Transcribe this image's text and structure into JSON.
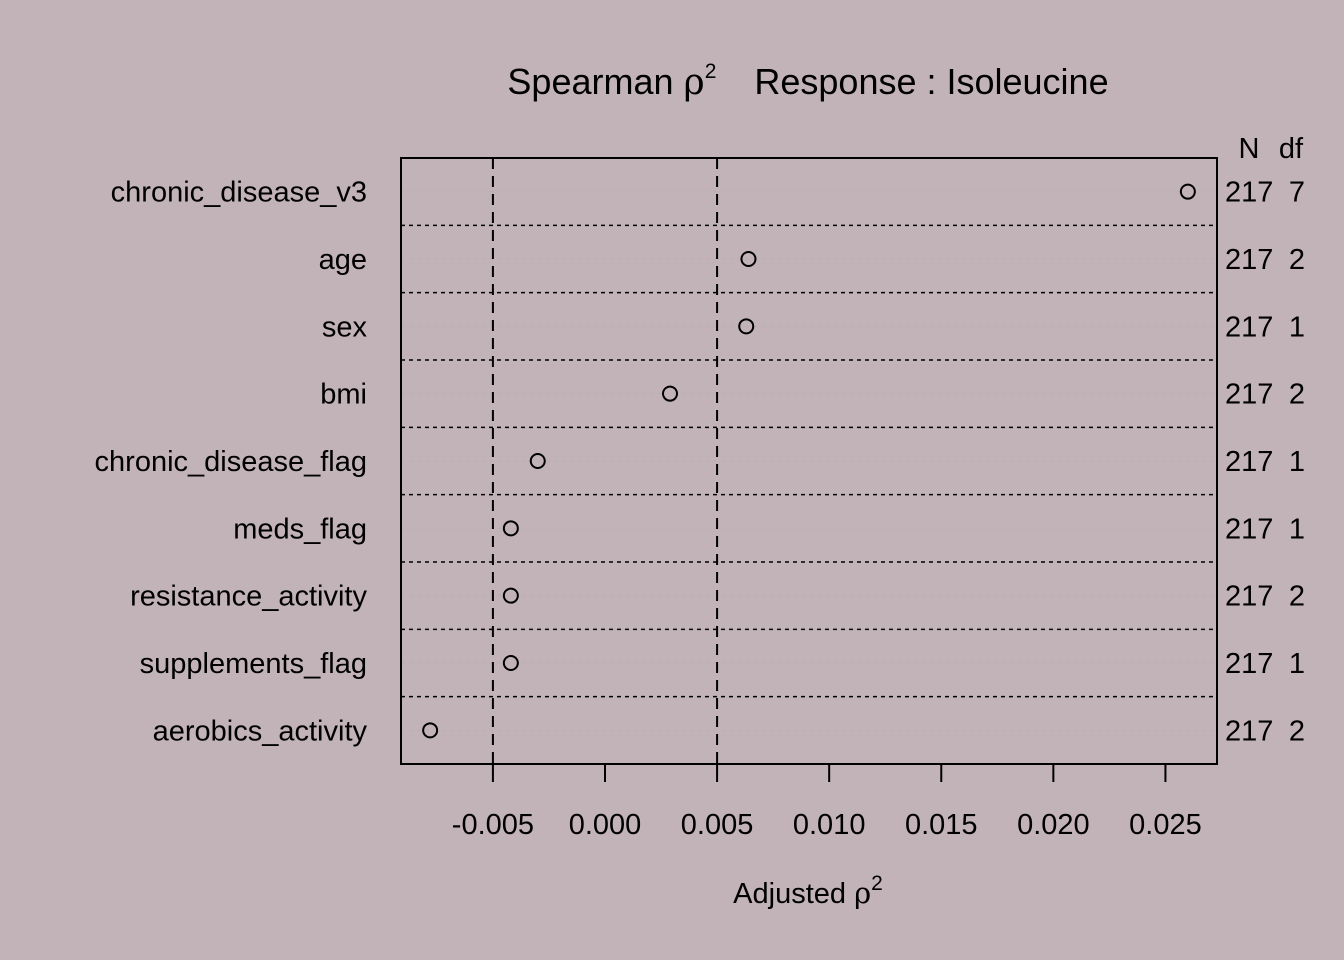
{
  "chart_data": {
    "type": "scatter",
    "title_prefix": "Spearman ",
    "title_rho": "ρ",
    "title_sup": "2",
    "title_suffix": "Response : Isoleucine",
    "xlabel": "Adjusted ",
    "xlabel_rho": "ρ",
    "xlabel_sup": "2",
    "xlim": [
      -0.0091,
      0.0273
    ],
    "xticks": [
      -0.005,
      0.0,
      0.005,
      0.01,
      0.015,
      0.02,
      0.025
    ],
    "xtick_labels": [
      "-0.005",
      "0.000",
      "0.005",
      "0.010",
      "0.015",
      "0.020",
      "0.025"
    ],
    "reference_lines": [
      -0.005,
      0.005
    ],
    "right_headers": {
      "n": "N",
      "df": "df"
    },
    "rows": [
      {
        "label": "chronic_disease_v3",
        "value": 0.026,
        "n": "217",
        "df": "7"
      },
      {
        "label": "age",
        "value": 0.0064,
        "n": "217",
        "df": "2"
      },
      {
        "label": "sex",
        "value": 0.0063,
        "n": "217",
        "df": "1"
      },
      {
        "label": "bmi",
        "value": 0.0029,
        "n": "217",
        "df": "2"
      },
      {
        "label": "chronic_disease_flag",
        "value": -0.003,
        "n": "217",
        "df": "1"
      },
      {
        "label": "meds_flag",
        "value": -0.0042,
        "n": "217",
        "df": "1"
      },
      {
        "label": "resistance_activity",
        "value": -0.0042,
        "n": "217",
        "df": "2"
      },
      {
        "label": "supplements_flag",
        "value": -0.0042,
        "n": "217",
        "df": "1"
      },
      {
        "label": "aerobics_activity",
        "value": -0.0078,
        "n": "217",
        "df": "2"
      }
    ]
  }
}
